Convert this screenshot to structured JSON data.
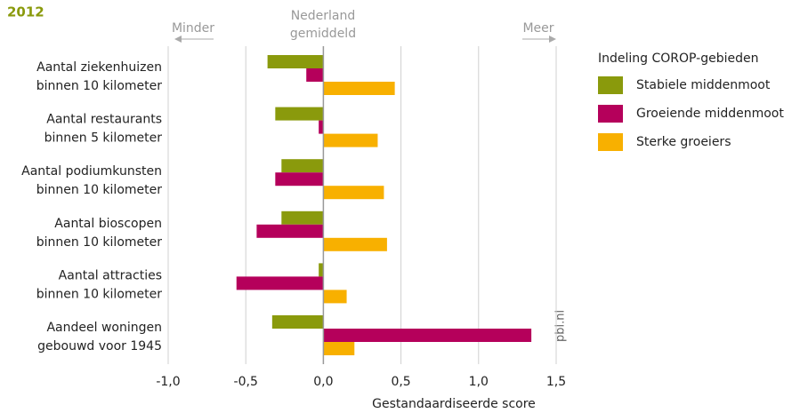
{
  "chart_data": {
    "type": "hbar",
    "title": "2012",
    "annotations": {
      "left": "Minder",
      "right": "Meer",
      "center": [
        "Nederland",
        "gemiddeld"
      ]
    },
    "xlabel": "Gestandaardiseerde score",
    "source": "pbl.nl",
    "legend_title": "Indeling COROP-gebieden",
    "categories": [
      [
        "Aantal ziekenhuizen",
        "binnen 10 kilometer"
      ],
      [
        "Aantal restaurants",
        "binnen 5 kilometer"
      ],
      [
        "Aantal podiumkunsten",
        "binnen 10 kilometer"
      ],
      [
        "Aantal bioscopen",
        "binnen 10 kilometer"
      ],
      [
        "Aantal attracties",
        "binnen 10 kilometer"
      ],
      [
        "Aandeel woningen",
        "gebouwd voor 1945"
      ]
    ],
    "series": [
      {
        "name": "Stabiele middenmoot",
        "color": "#8a9a0c",
        "values": [
          -0.36,
          -0.31,
          -0.27,
          -0.27,
          -0.03,
          -0.33
        ]
      },
      {
        "name": "Groeiende middenmoot",
        "color": "#b5005b",
        "values": [
          -0.11,
          -0.03,
          -0.31,
          -0.43,
          -0.56,
          1.34
        ]
      },
      {
        "name": "Sterke groeiers",
        "color": "#f8b000",
        "values": [
          0.46,
          0.35,
          0.39,
          0.41,
          0.15,
          0.2
        ]
      }
    ],
    "xlim": [
      -1.0,
      1.5
    ],
    "xticks": [
      {
        "value": -1.0,
        "label": "-1,0"
      },
      {
        "value": -0.5,
        "label": "-0,5"
      },
      {
        "value": 0,
        "label": "0,0"
      },
      {
        "value": 0.5,
        "label": "0,5"
      },
      {
        "value": 1.0,
        "label": "1,0"
      },
      {
        "value": 1.5,
        "label": "1,5"
      }
    ],
    "grid": true
  }
}
